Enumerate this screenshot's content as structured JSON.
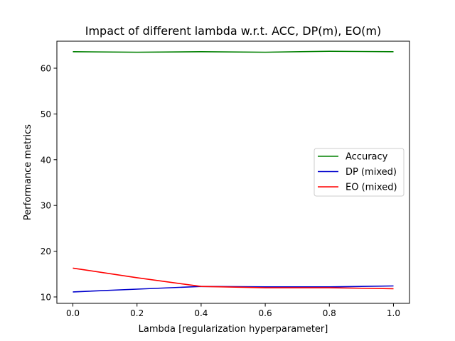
{
  "chart_data": {
    "type": "line",
    "title": "Impact of different lambda w.r.t. ACC, DP(m), EO(m)",
    "xlabel": "Lambda [regularization hyperparameter]",
    "ylabel": "Performance metrics",
    "xlim": [
      -0.05,
      1.05
    ],
    "ylim": [
      8.6,
      65.9
    ],
    "xticks": [
      0.0,
      0.2,
      0.4,
      0.6,
      0.8,
      1.0
    ],
    "xtick_labels": [
      "0.0",
      "0.2",
      "0.4",
      "0.6",
      "0.8",
      "1.0"
    ],
    "yticks": [
      10,
      20,
      30,
      40,
      50,
      60
    ],
    "ytick_labels": [
      "10",
      "20",
      "30",
      "40",
      "50",
      "60"
    ],
    "grid": false,
    "legend_position": "center-right",
    "x": [
      0.0,
      0.2,
      0.4,
      0.6,
      0.8,
      1.0
    ],
    "series": [
      {
        "name": "Accuracy",
        "color": "#008000",
        "values": [
          63.6,
          63.5,
          63.6,
          63.5,
          63.7,
          63.6
        ]
      },
      {
        "name": "DP (mixed)",
        "color": "#0000cc",
        "values": [
          11.1,
          11.7,
          12.3,
          12.2,
          12.2,
          12.4
        ]
      },
      {
        "name": "EO (mixed)",
        "color": "#ff0000",
        "values": [
          16.3,
          14.2,
          12.3,
          12.0,
          12.0,
          11.8
        ]
      }
    ]
  }
}
